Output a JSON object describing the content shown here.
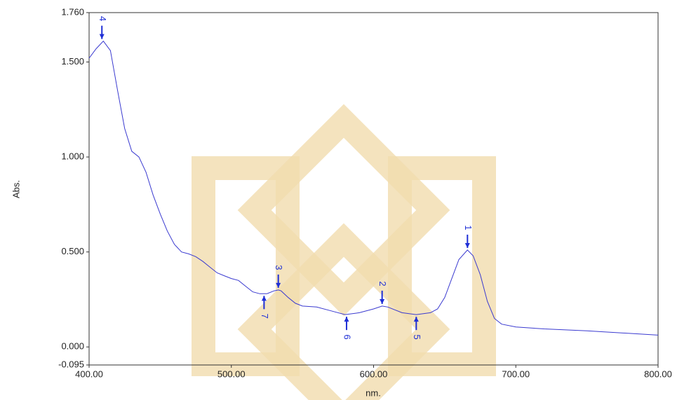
{
  "chart_data": {
    "type": "line",
    "x_label": "nm.",
    "y_label": "Abs.",
    "color": "#3a3ad0",
    "marker_color": "#1f2fd6",
    "xlim": [
      400,
      800
    ],
    "ylim": [
      -0.095,
      1.76
    ],
    "xticks": [
      {
        "value": 400,
        "label": "400.00"
      },
      {
        "value": 500,
        "label": "500.00"
      },
      {
        "value": 600,
        "label": "600.00"
      },
      {
        "value": 700,
        "label": "700.00"
      },
      {
        "value": 800,
        "label": "800.00"
      }
    ],
    "yticks": [
      {
        "value": -0.095,
        "label": "-0.095"
      },
      {
        "value": 0,
        "label": "0.000"
      },
      {
        "value": 0.5,
        "label": "0.500"
      },
      {
        "value": 1,
        "label": "1.000"
      },
      {
        "value": 1.5,
        "label": "1.500"
      },
      {
        "value": 1.76,
        "label": "1.760"
      }
    ],
    "x": [
      400,
      405,
      410,
      415,
      420,
      425,
      430,
      435,
      440,
      445,
      450,
      455,
      460,
      465,
      470,
      475,
      480,
      485,
      490,
      495,
      500,
      505,
      510,
      515,
      520,
      525,
      530,
      533,
      535,
      540,
      545,
      550,
      560,
      570,
      580,
      590,
      600,
      606,
      610,
      620,
      630,
      640,
      645,
      650,
      655,
      660,
      666,
      670,
      675,
      680,
      685,
      690,
      700,
      720,
      750,
      800
    ],
    "values": [
      1.52,
      1.57,
      1.61,
      1.56,
      1.35,
      1.15,
      1.03,
      1.0,
      0.92,
      0.8,
      0.7,
      0.61,
      0.54,
      0.5,
      0.49,
      0.475,
      0.45,
      0.42,
      0.39,
      0.375,
      0.36,
      0.35,
      0.32,
      0.29,
      0.28,
      0.28,
      0.295,
      0.3,
      0.295,
      0.26,
      0.23,
      0.215,
      0.21,
      0.19,
      0.17,
      0.18,
      0.2,
      0.215,
      0.21,
      0.18,
      0.17,
      0.18,
      0.2,
      0.26,
      0.36,
      0.46,
      0.51,
      0.48,
      0.38,
      0.24,
      0.15,
      0.12,
      0.105,
      0.095,
      0.085,
      0.062
    ],
    "peaks": [
      {
        "label": "1",
        "x": 666,
        "y": 0.51
      },
      {
        "label": "2",
        "x": 606,
        "y": 0.215
      },
      {
        "label": "3",
        "x": 533,
        "y": 0.3
      },
      {
        "label": "4",
        "x": 409,
        "y": 1.61
      }
    ],
    "valleys": [
      {
        "label": "5",
        "x": 630,
        "y": 0.17
      },
      {
        "label": "6",
        "x": 581,
        "y": 0.17
      },
      {
        "label": "7",
        "x": 523,
        "y": 0.28
      }
    ]
  }
}
